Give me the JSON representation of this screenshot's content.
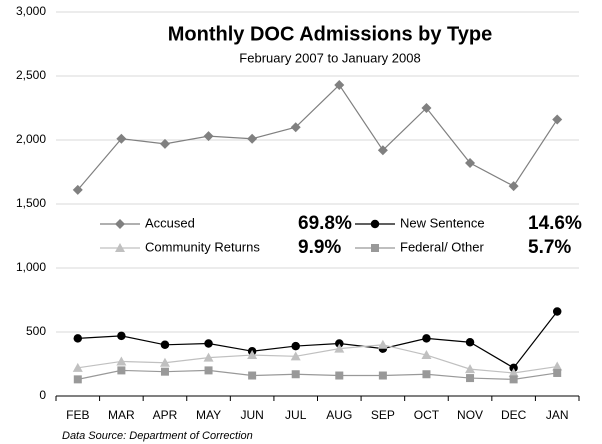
{
  "chart_data": {
    "type": "line",
    "title": "Monthly DOC Admissions by Type",
    "subtitle": "February 2007 to January 2008",
    "source": "Data Source: Department of Correction",
    "categories": [
      "FEB",
      "MAR",
      "APR",
      "MAY",
      "JUN",
      "JUL",
      "AUG",
      "SEP",
      "OCT",
      "NOV",
      "DEC",
      "JAN"
    ],
    "series": [
      {
        "name": "Accused",
        "share": "69.8%",
        "color": "#808080",
        "marker": "diamond",
        "values": [
          1610,
          2010,
          1970,
          2030,
          2010,
          2100,
          2430,
          1920,
          2250,
          1820,
          1640,
          2160
        ]
      },
      {
        "name": "New Sentence",
        "share": "14.6%",
        "color": "#000000",
        "marker": "circle",
        "values": [
          450,
          470,
          400,
          410,
          350,
          390,
          410,
          370,
          450,
          420,
          220,
          660
        ]
      },
      {
        "name": "Community Returns",
        "share": "9.9%",
        "color": "#c0c0c0",
        "marker": "triangle",
        "values": [
          220,
          270,
          260,
          300,
          320,
          310,
          370,
          400,
          320,
          210,
          180,
          230
        ]
      },
      {
        "name": "Federal/ Other",
        "share": "5.7%",
        "color": "#999999",
        "marker": "square",
        "values": [
          130,
          200,
          190,
          200,
          160,
          170,
          160,
          160,
          170,
          140,
          130,
          180
        ]
      }
    ],
    "ylim": [
      0,
      3000
    ],
    "yticks": [
      0,
      {
        "value": 500,
        "label": "500"
      },
      {
        "value": 1000,
        "label": "1,000"
      },
      {
        "value": 1500,
        "label": "1,500"
      },
      {
        "value": 2000,
        "label": "2,000"
      },
      {
        "value": 2500,
        "label": "2,500"
      },
      {
        "value": 3000,
        "label": "3,000"
      }
    ],
    "grid": true
  }
}
